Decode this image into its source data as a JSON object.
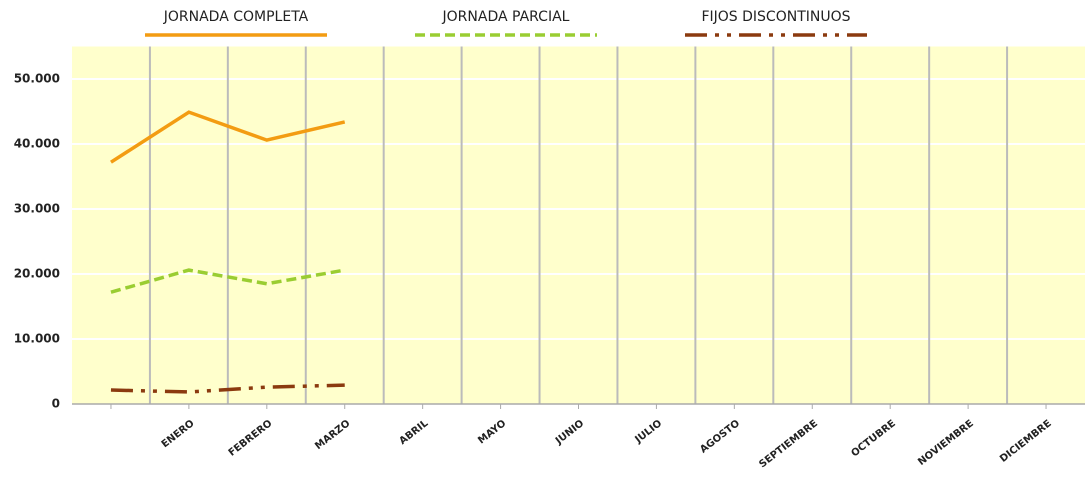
{
  "chart_data": {
    "type": "line",
    "categories": [
      null,
      "ENERO",
      "FEBRERO",
      "MARZO",
      "ABRIL",
      "MAYO",
      "JUNIO",
      "JULIO",
      "AGOSTO",
      "SEPTIEMBRE",
      "OCTUBRE",
      "NOVIEMBRE",
      "DICIEMBRE"
    ],
    "series": [
      {
        "name": "JORNADA COMPLETA",
        "color": "#f39c12",
        "dash": "solid",
        "values": [
          37200,
          44900,
          40600,
          43400,
          null,
          null,
          null,
          null,
          null,
          null,
          null,
          null,
          null
        ]
      },
      {
        "name": "JORNADA PARCIAL",
        "color": "#9acd32",
        "dash": "dashed",
        "values": [
          17200,
          20600,
          18500,
          20600,
          null,
          null,
          null,
          null,
          null,
          null,
          null,
          null,
          null
        ]
      },
      {
        "name": "FIJOS DISCONTINUOS",
        "color": "#8b3a0f",
        "dash": "dashdotdot",
        "values": [
          2150,
          1850,
          2600,
          2900,
          null,
          null,
          null,
          null,
          null,
          null,
          null,
          null,
          null
        ]
      }
    ],
    "ylim": [
      0,
      55000
    ],
    "yticks": [
      0,
      {
        "value": 10000,
        "label": "10.000"
      },
      {
        "value": 20000,
        "label": "20.000"
      },
      {
        "value": 30000,
        "label": "30.000"
      },
      {
        "value": 40000,
        "label": "40.000"
      },
      {
        "value": 50000,
        "label": "50.000"
      }
    ],
    "grid": true,
    "legend": "top"
  }
}
